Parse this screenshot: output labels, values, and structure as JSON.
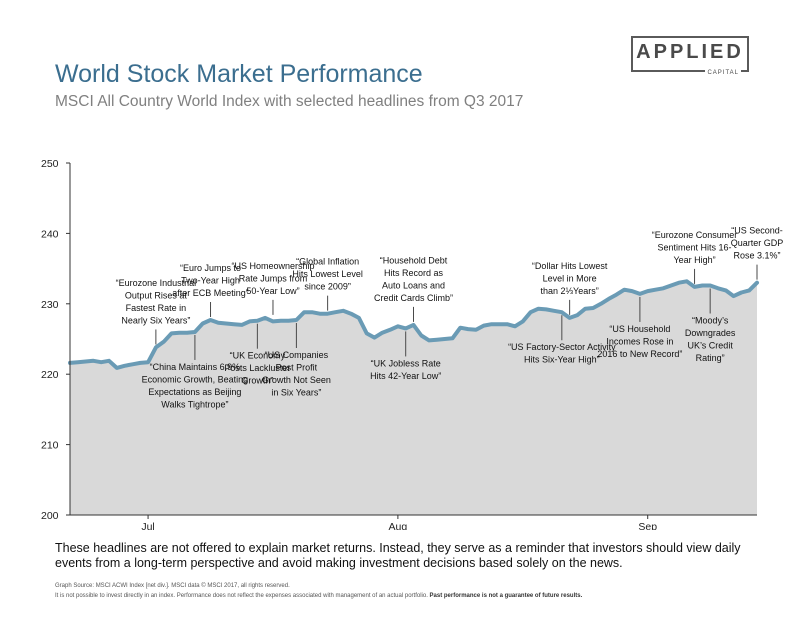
{
  "header": {
    "title": "World Stock Market Performance",
    "subtitle": "MSCI All Country World Index with selected headlines from Q3 2017"
  },
  "logo": {
    "main": "APPLIED",
    "sub": "CAPITAL"
  },
  "colors": {
    "line": "#6a9bb5",
    "area": "#d9d9d9",
    "title": "#3b6e8f",
    "axis": "#333333"
  },
  "chart_data": {
    "type": "area",
    "title": "World Stock Market Performance",
    "ylim": [
      200,
      250
    ],
    "yticks": [
      200,
      210,
      220,
      230,
      240,
      250
    ],
    "xlabels": [
      {
        "label": "Jul",
        "day": 10
      },
      {
        "label": "Aug",
        "day": 42
      },
      {
        "label": "Sep",
        "day": 74
      }
    ],
    "grid": false,
    "series": [
      {
        "values": [
          [
            0,
            221.6
          ],
          [
            1,
            221.7
          ],
          [
            2,
            221.8
          ],
          [
            3,
            221.9
          ],
          [
            4,
            221.7
          ],
          [
            5,
            221.9
          ],
          [
            6,
            220.9
          ],
          [
            7,
            221.2
          ],
          [
            8,
            221.4
          ],
          [
            9,
            221.6
          ],
          [
            10,
            221.7
          ],
          [
            11,
            223.8
          ],
          [
            12,
            224.6
          ],
          [
            13,
            225.8
          ],
          [
            14,
            225.9
          ],
          [
            15,
            225.9
          ],
          [
            16,
            226.0
          ],
          [
            17,
            227.2
          ],
          [
            18,
            227.7
          ],
          [
            19,
            227.3
          ],
          [
            20,
            227.2
          ],
          [
            21,
            227.1
          ],
          [
            22,
            227.0
          ],
          [
            23,
            227.5
          ],
          [
            24,
            227.6
          ],
          [
            25,
            228.0
          ],
          [
            26,
            227.5
          ],
          [
            27,
            227.6
          ],
          [
            28,
            227.6
          ],
          [
            29,
            227.7
          ],
          [
            30,
            228.8
          ],
          [
            31,
            228.8
          ],
          [
            32,
            228.6
          ],
          [
            33,
            228.6
          ],
          [
            34,
            228.8
          ],
          [
            35,
            229.0
          ],
          [
            36,
            228.6
          ],
          [
            37,
            228.0
          ],
          [
            38,
            225.8
          ],
          [
            39,
            225.2
          ],
          [
            40,
            225.9
          ],
          [
            41,
            226.3
          ],
          [
            42,
            226.8
          ],
          [
            43,
            226.5
          ],
          [
            44,
            227.0
          ],
          [
            45,
            225.5
          ],
          [
            46,
            224.8
          ],
          [
            47,
            224.9
          ],
          [
            48,
            225.0
          ],
          [
            49,
            225.1
          ],
          [
            50,
            226.6
          ],
          [
            51,
            226.4
          ],
          [
            52,
            226.3
          ],
          [
            53,
            226.9
          ],
          [
            54,
            227.1
          ],
          [
            55,
            227.1
          ],
          [
            56,
            227.1
          ],
          [
            57,
            226.8
          ],
          [
            58,
            227.5
          ],
          [
            59,
            228.8
          ],
          [
            60,
            229.3
          ],
          [
            61,
            229.2
          ],
          [
            62,
            229.0
          ],
          [
            63,
            228.8
          ],
          [
            64,
            228.0
          ],
          [
            65,
            228.4
          ],
          [
            66,
            229.3
          ],
          [
            67,
            229.4
          ],
          [
            68,
            230.0
          ],
          [
            69,
            230.7
          ],
          [
            70,
            231.3
          ],
          [
            71,
            232.0
          ],
          [
            72,
            231.8
          ],
          [
            73,
            231.4
          ],
          [
            74,
            231.8
          ],
          [
            75,
            232.0
          ],
          [
            76,
            232.2
          ],
          [
            77,
            232.6
          ],
          [
            78,
            233.0
          ],
          [
            79,
            233.2
          ],
          [
            80,
            232.4
          ],
          [
            81,
            232.6
          ],
          [
            82,
            232.6
          ],
          [
            83,
            232.2
          ],
          [
            84,
            231.9
          ],
          [
            85,
            231.1
          ],
          [
            86,
            231.6
          ],
          [
            87,
            231.9
          ],
          [
            88,
            233.0
          ]
        ]
      }
    ],
    "annotations": [
      {
        "day": 11,
        "value": 223.8,
        "pos": "above",
        "lines": [
          "“Eurozone Industrial",
          "Output Rises at",
          "Fastest Rate in",
          "Nearly Six Years”"
        ]
      },
      {
        "day": 16,
        "value": 226.0,
        "pos": "below",
        "lines": [
          "“China Maintains 6.9%",
          "Economic Growth, Beating",
          "Expectations as Beijing",
          "Walks Tightrope”"
        ]
      },
      {
        "day": 18,
        "value": 227.7,
        "pos": "above",
        "lines": [
          "“Euro Jumps to",
          "Two-Year High",
          "after ECB Meeting”"
        ]
      },
      {
        "day": 24,
        "value": 227.6,
        "pos": "below",
        "lines": [
          "“UK Economy",
          "Posts Lackluster",
          "Growth”"
        ]
      },
      {
        "day": 26,
        "value": 228.0,
        "pos": "above",
        "lines": [
          "“US Homeownership",
          "Rate Jumps from",
          "50-Year Low”"
        ]
      },
      {
        "day": 29,
        "value": 227.7,
        "pos": "below",
        "lines": [
          "“US Companies",
          "Post Profit",
          "Growth Not Seen",
          "in Six Years”"
        ]
      },
      {
        "day": 33,
        "value": 228.6,
        "pos": "above",
        "lines": [
          "“Global Inflation",
          "Hits Lowest Level",
          "since 2009”"
        ]
      },
      {
        "day": 43,
        "value": 226.5,
        "pos": "below",
        "lines": [
          "“UK Jobless Rate",
          "Hits 42-Year Low”"
        ]
      },
      {
        "day": 44,
        "value": 227.0,
        "pos": "above",
        "lines": [
          "“Household Debt",
          "Hits Record as",
          "Auto Loans and",
          "Credit Cards Climb”"
        ]
      },
      {
        "day": 63,
        "value": 228.8,
        "pos": "below",
        "lines": [
          "“US Factory-Sector Activity",
          "Hits Six-Year High”"
        ]
      },
      {
        "day": 64,
        "value": 228.0,
        "pos": "above",
        "lines": [
          "“Dollar Hits Lowest",
          "Level in More",
          "than 2⅓Years”"
        ]
      },
      {
        "day": 73,
        "value": 231.4,
        "pos": "below",
        "lines": [
          "“US Household",
          "Incomes Rose in",
          "2016 to New Record”"
        ]
      },
      {
        "day": 80,
        "value": 232.4,
        "pos": "above",
        "lines": [
          "“Eurozone Consumer",
          "Sentiment Hits 16-",
          "Year High”"
        ]
      },
      {
        "day": 82,
        "value": 232.6,
        "pos": "below",
        "lines": [
          "“Moody’s",
          "Downgrades",
          "UK’s Credit",
          "Rating”"
        ]
      },
      {
        "day": 88,
        "value": 233.0,
        "pos": "above",
        "lines": [
          "“US Second-",
          "Quarter GDP",
          "Rose 3.1%”"
        ]
      }
    ]
  },
  "footer": {
    "note": "These headlines are not offered to explain market returns. Instead, they serve as a reminder that investors should view daily events from a long-term perspective and avoid making investment decisions based solely on the news.",
    "source": "Graph Source: MSCI ACWI Index [net div.]. MSCI data © MSCI 2017, all rights reserved.",
    "disclaimer": "It is not possible to invest directly in an index. Performance does not reflect the expenses associated with management of an actual portfolio.",
    "disclaimer_bold": "Past performance is not a guarantee of future results."
  }
}
